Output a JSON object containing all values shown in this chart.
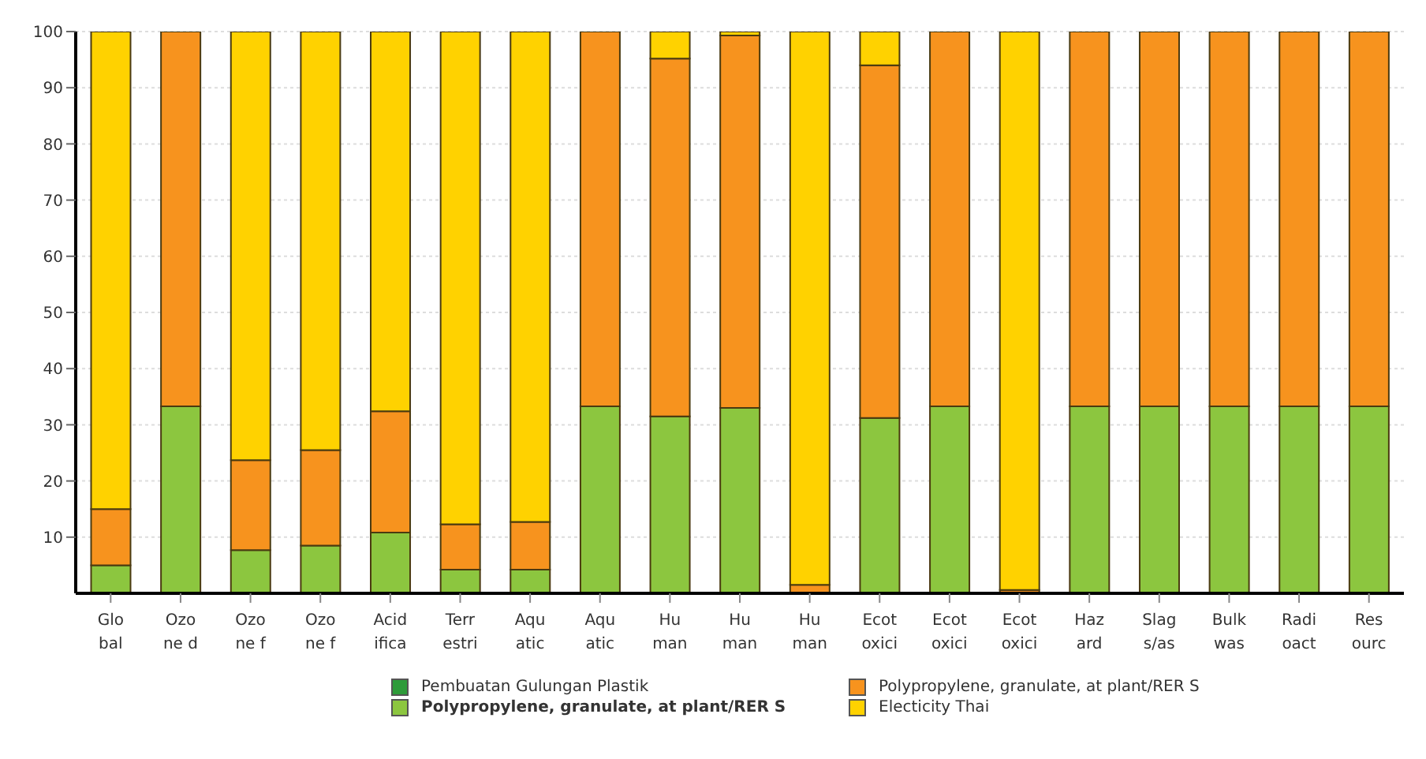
{
  "chart_data": {
    "type": "bar",
    "stacked": true,
    "categories": [
      "Glo\nbal",
      "Ozo\nne d",
      "Ozo\nne f",
      "Ozo\nne f",
      "Acid\nifica",
      "Terr\nestri",
      "Aqu\natic",
      "Aqu\natic",
      "Hu\nman",
      "Hu\nman",
      "Hu\nman",
      "Ecot\noxici",
      "Ecot\noxici",
      "Ecot\noxici",
      "Haz\nard",
      "Slag\ns/as",
      "Bulk\nwas",
      "Radi\noact",
      "Res\nourc"
    ],
    "series": [
      {
        "name": "Pembuatan Gulungan Plastik",
        "color": "#2e9b3a",
        "values": [
          0,
          0,
          0,
          0,
          0,
          0,
          0,
          0,
          0,
          0,
          0,
          0,
          0,
          0,
          0,
          0,
          0,
          0,
          0
        ]
      },
      {
        "name": "Polypropylene, granulate, at plant/RER S",
        "color": "#8cc63f",
        "values": [
          5,
          33.3,
          7.7,
          8.5,
          10.8,
          4.2,
          4.2,
          33.3,
          31.5,
          33,
          null,
          31.2,
          33.3,
          null,
          33.3,
          33.3,
          33.3,
          33.3,
          33.3
        ]
      },
      {
        "name": "Polypropylene, granulate, at plant/RER S",
        "color": "#f7931e",
        "values": [
          10,
          66.7,
          16,
          17,
          21.6,
          8.1,
          8.5,
          66.7,
          63.7,
          66.3,
          1.5,
          62.8,
          66.7,
          0.6,
          66.7,
          66.7,
          66.7,
          66.7,
          66.7
        ]
      },
      {
        "name": "Electicity Thai",
        "color": "#ffd200",
        "values": [
          85,
          0,
          76.3,
          74.5,
          67.6,
          87.7,
          87.3,
          0,
          4.8,
          0.7,
          98.5,
          6,
          0,
          99.4,
          0,
          0,
          0,
          0,
          0
        ]
      }
    ],
    "ylim": [
      0,
      100
    ],
    "yticks": [
      10,
      20,
      30,
      40,
      50,
      60,
      70,
      80,
      90,
      100
    ],
    "grid": "y",
    "legend": "bottom"
  }
}
